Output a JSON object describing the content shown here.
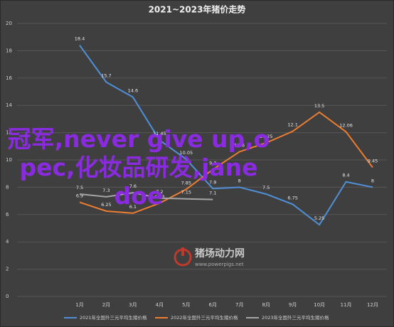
{
  "chart_data": {
    "type": "line",
    "title": "2021~2023年猪价走势",
    "categories": [
      "1月",
      "2月",
      "3月",
      "4月",
      "5月",
      "6月",
      "7月",
      "8月",
      "9月",
      "10月",
      "11月",
      "12月"
    ],
    "series": [
      {
        "name": "2021年全国外三元平均生猪价格",
        "color": "#4f8fd6",
        "values": [
          18.4,
          15.7,
          14.6,
          11.45,
          10.05,
          7.9,
          8,
          7.5,
          6.75,
          5.25,
          8.4,
          8
        ]
      },
      {
        "name": "2022年全国外三元平均生猪价格",
        "color": "#ed7d31",
        "values": [
          6.9,
          6.25,
          6.1,
          6.83,
          7.85,
          9.3,
          10.6,
          11.25,
          12.1,
          13.5,
          12.06,
          9.45
        ]
      },
      {
        "name": "2023年全国外三元平均生猪价格",
        "color": "#a5a5a5",
        "values": [
          7.5,
          7.3,
          7.6,
          7.2,
          7.15,
          7.1,
          null,
          null,
          null,
          null,
          null,
          null
        ]
      }
    ],
    "ylim": [
      0,
      20
    ],
    "yticks": [
      0,
      2,
      4,
      6,
      8,
      10,
      12,
      14,
      16,
      18,
      20
    ],
    "grid": true,
    "overlay_text": "冠军,never give up,opec,化妆品研发,jane doe",
    "watermark": "猪场动力网",
    "watermark_url": "www.powerpigs.net"
  }
}
